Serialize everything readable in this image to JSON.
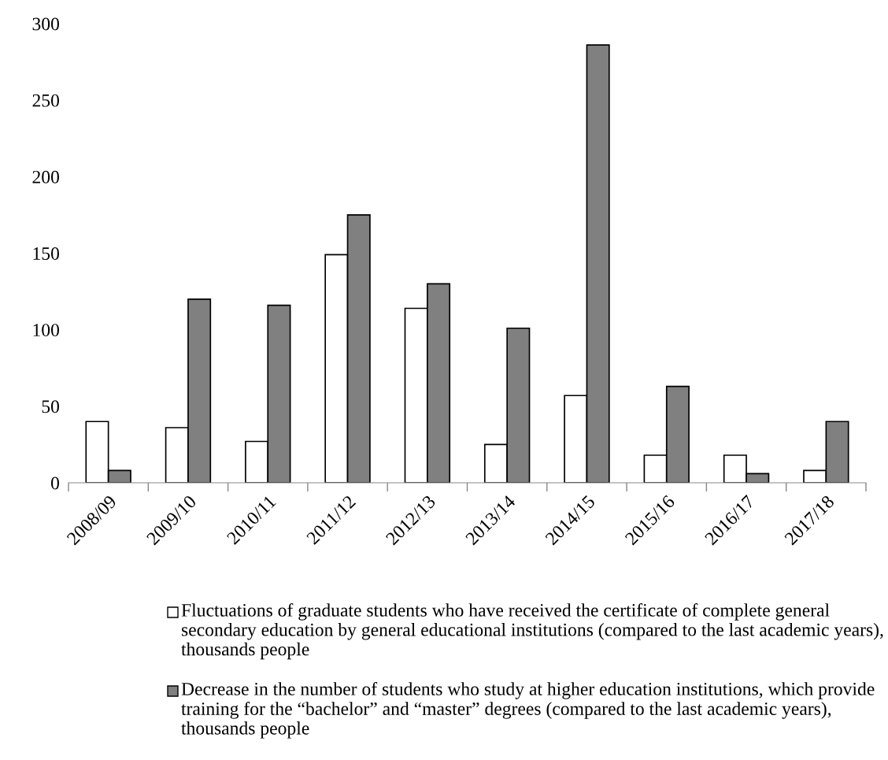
{
  "chart_data": {
    "type": "bar",
    "categories": [
      "2008/09",
      "2009/10",
      "2010/11",
      "2011/12",
      "2012/13",
      "2013/14",
      "2014/15",
      "2015/16",
      "2016/17",
      "2017/18"
    ],
    "series": [
      {
        "name": "Fluctuations of graduate students who have received the certificate of complete general secondary education by general educational institutions (compared to the last academic years), thousands people",
        "color": "#ffffff",
        "values": [
          40,
          36,
          27,
          149,
          114,
          25,
          57,
          18,
          18,
          8
        ]
      },
      {
        "name": "Decrease in the number of students who study at higher education institutions, which provide training for the “bachelor” and “master” degrees (compared to the last academic years), thousands people",
        "color": "#808080",
        "values": [
          8,
          120,
          116,
          175,
          130,
          101,
          286,
          63,
          6,
          40
        ]
      }
    ],
    "ylim": [
      0,
      300
    ],
    "yticks": [
      0,
      50,
      100,
      150,
      200,
      250,
      300
    ],
    "grid": false,
    "legend": "bottom"
  }
}
